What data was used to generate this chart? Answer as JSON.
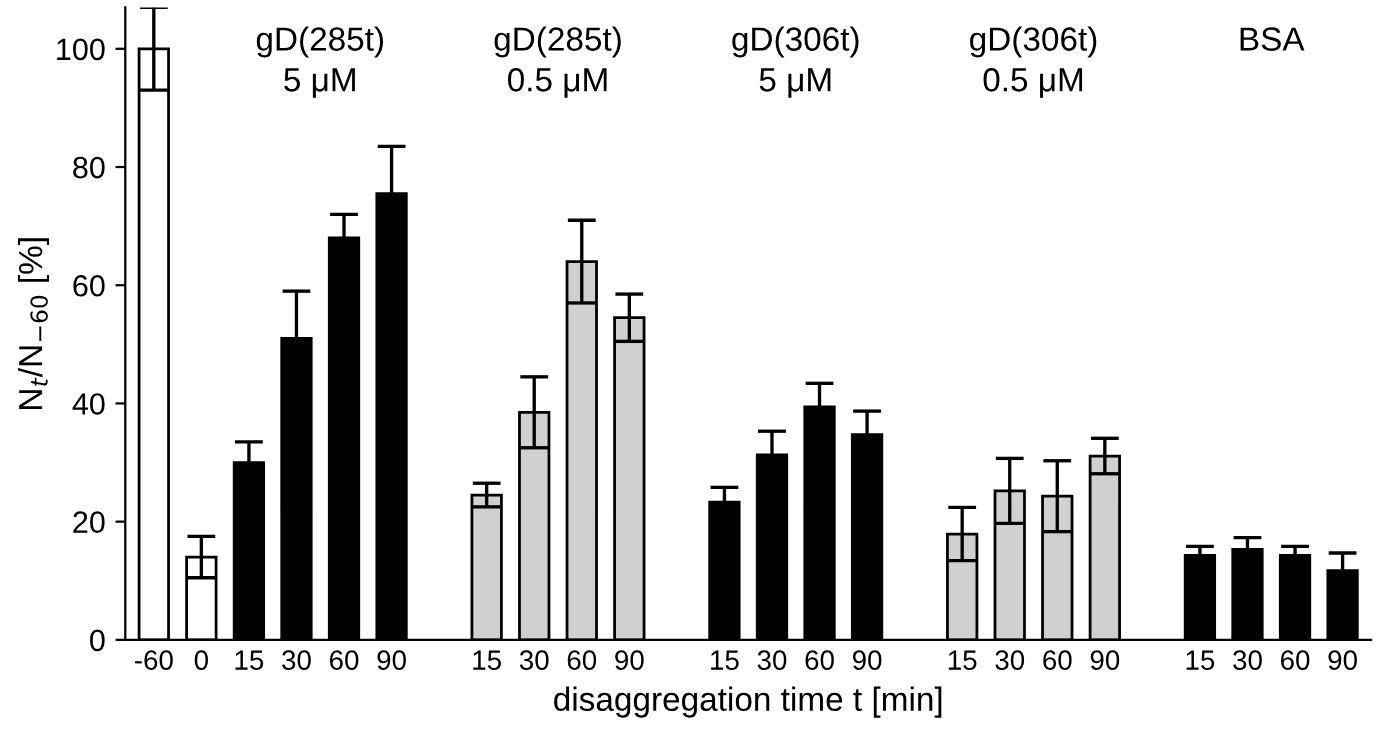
{
  "chart_data": {
    "type": "bar",
    "xlabel": "disaggregation time t [min]",
    "ylabel": "N$_{t}$/N$_{−60}$ [%]",
    "categories": [
      "-60",
      "0",
      "15",
      "30",
      "60",
      "90",
      null,
      "15",
      "30",
      "60",
      "90",
      null,
      "15",
      "30",
      "60",
      "90",
      null,
      "15",
      "30",
      "60",
      "90",
      null,
      "15",
      "30",
      "60",
      "90"
    ],
    "values": [
      100,
      14,
      30,
      51,
      68,
      75.5,
      null,
      24.5,
      38.5,
      64,
      54.5,
      null,
      23.3,
      31.3,
      39.4,
      34.7,
      null,
      17.9,
      25.2,
      24.3,
      31.1,
      null,
      14.3,
      15.3,
      14.3,
      11.7
    ],
    "errors": [
      7,
      3.5,
      3.5,
      8,
      4,
      8,
      null,
      2,
      6,
      7,
      4,
      null,
      2.5,
      4,
      4,
      4,
      null,
      4.5,
      5.5,
      6,
      3,
      null,
      1.5,
      2,
      1.5,
      3
    ],
    "colors": [
      "#ffffff",
      "#ffffff",
      "#000000",
      "#000000",
      "#000000",
      "#000000",
      "#ffffff",
      "#d0d0d0",
      "#d0d0d0",
      "#d0d0d0",
      "#d0d0d0",
      "#ffffff",
      "#000000",
      "#000000",
      "#000000",
      "#000000",
      "#ffffff",
      "#d0d0d0",
      "#d0d0d0",
      "#d0d0d0",
      "#d0d0d0",
      "#ffffff",
      "#000000",
      "#000000",
      "#000000",
      "#000000"
    ],
    "annotations": [
      "gD(285t)\n5 μM",
      "gD(285t)\n0.5 μM",
      "gD(306t)\n5 μM",
      "gD(306t)\n0.5 μM",
      "BSA"
    ],
    "ylim": [
      0,
      107
    ],
    "yticks": [
      0,
      20,
      40,
      60,
      80,
      100
    ],
    "grid": false
  }
}
